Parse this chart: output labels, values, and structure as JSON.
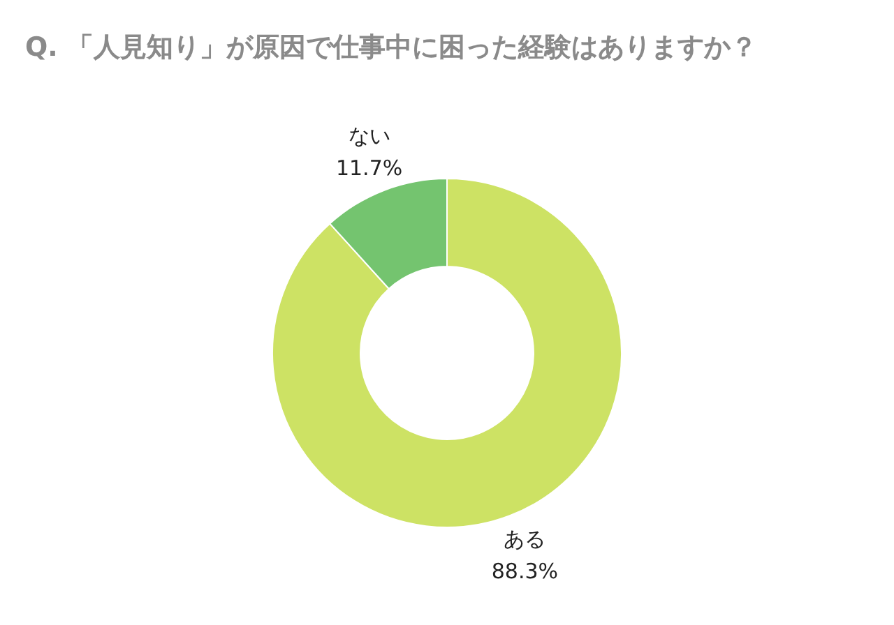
{
  "chart_data": {
    "type": "donut",
    "title": "Q. 「人見知り」が原因で仕事中に困った経験はありますか？",
    "categories": [
      "ある",
      "ない"
    ],
    "values": [
      88.3,
      11.7
    ],
    "colors": [
      "#cde264",
      "#74c46f"
    ],
    "value_labels": [
      "88.3%",
      "11.7%"
    ],
    "legend": false
  }
}
